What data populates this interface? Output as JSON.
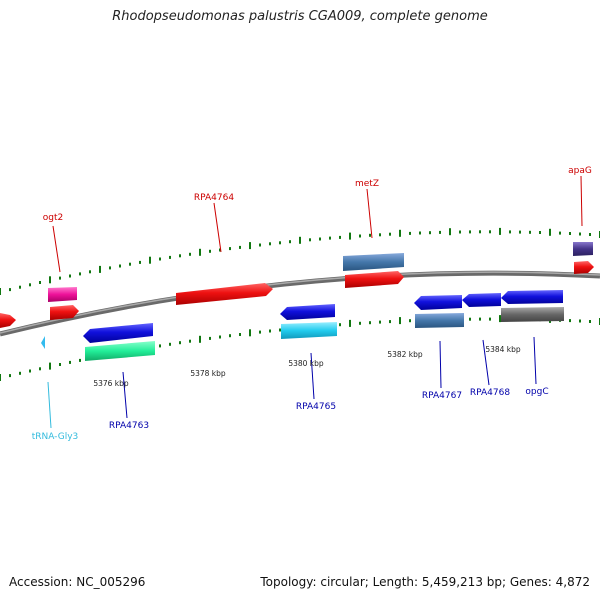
{
  "title": "Rhodopseudomonas palustris CGA009, complete genome",
  "footer": {
    "accession": "Accession: NC_005296",
    "topology": "Topology: circular; Length: 5,459,213 bp; Genes: 4,872"
  },
  "scale_labels": [
    "5376 kbp",
    "5378 kbp",
    "5380 kbp",
    "5382 kbp",
    "5384 kbp"
  ],
  "genes": [
    {
      "name": "ogt2",
      "color": "#cc0000"
    },
    {
      "name": "RPA4764",
      "color": "#cc0000"
    },
    {
      "name": "metZ",
      "color": "#cc0000"
    },
    {
      "name": "apaG",
      "color": "#cc0000"
    },
    {
      "name": "tRNA-Gly3",
      "color": "#33bbdd"
    },
    {
      "name": "RPA4763",
      "color": "#0000aa"
    },
    {
      "name": "RPA4765",
      "color": "#0000aa"
    },
    {
      "name": "RPA4767",
      "color": "#0000aa"
    },
    {
      "name": "RPA4768",
      "color": "#0000aa"
    },
    {
      "name": "opgC",
      "color": "#0000aa"
    }
  ],
  "colors": {
    "forward_cds": "#ee1111",
    "reverse_cds": "#1111dd",
    "backbone": "#888888",
    "ticks": "#117711"
  }
}
